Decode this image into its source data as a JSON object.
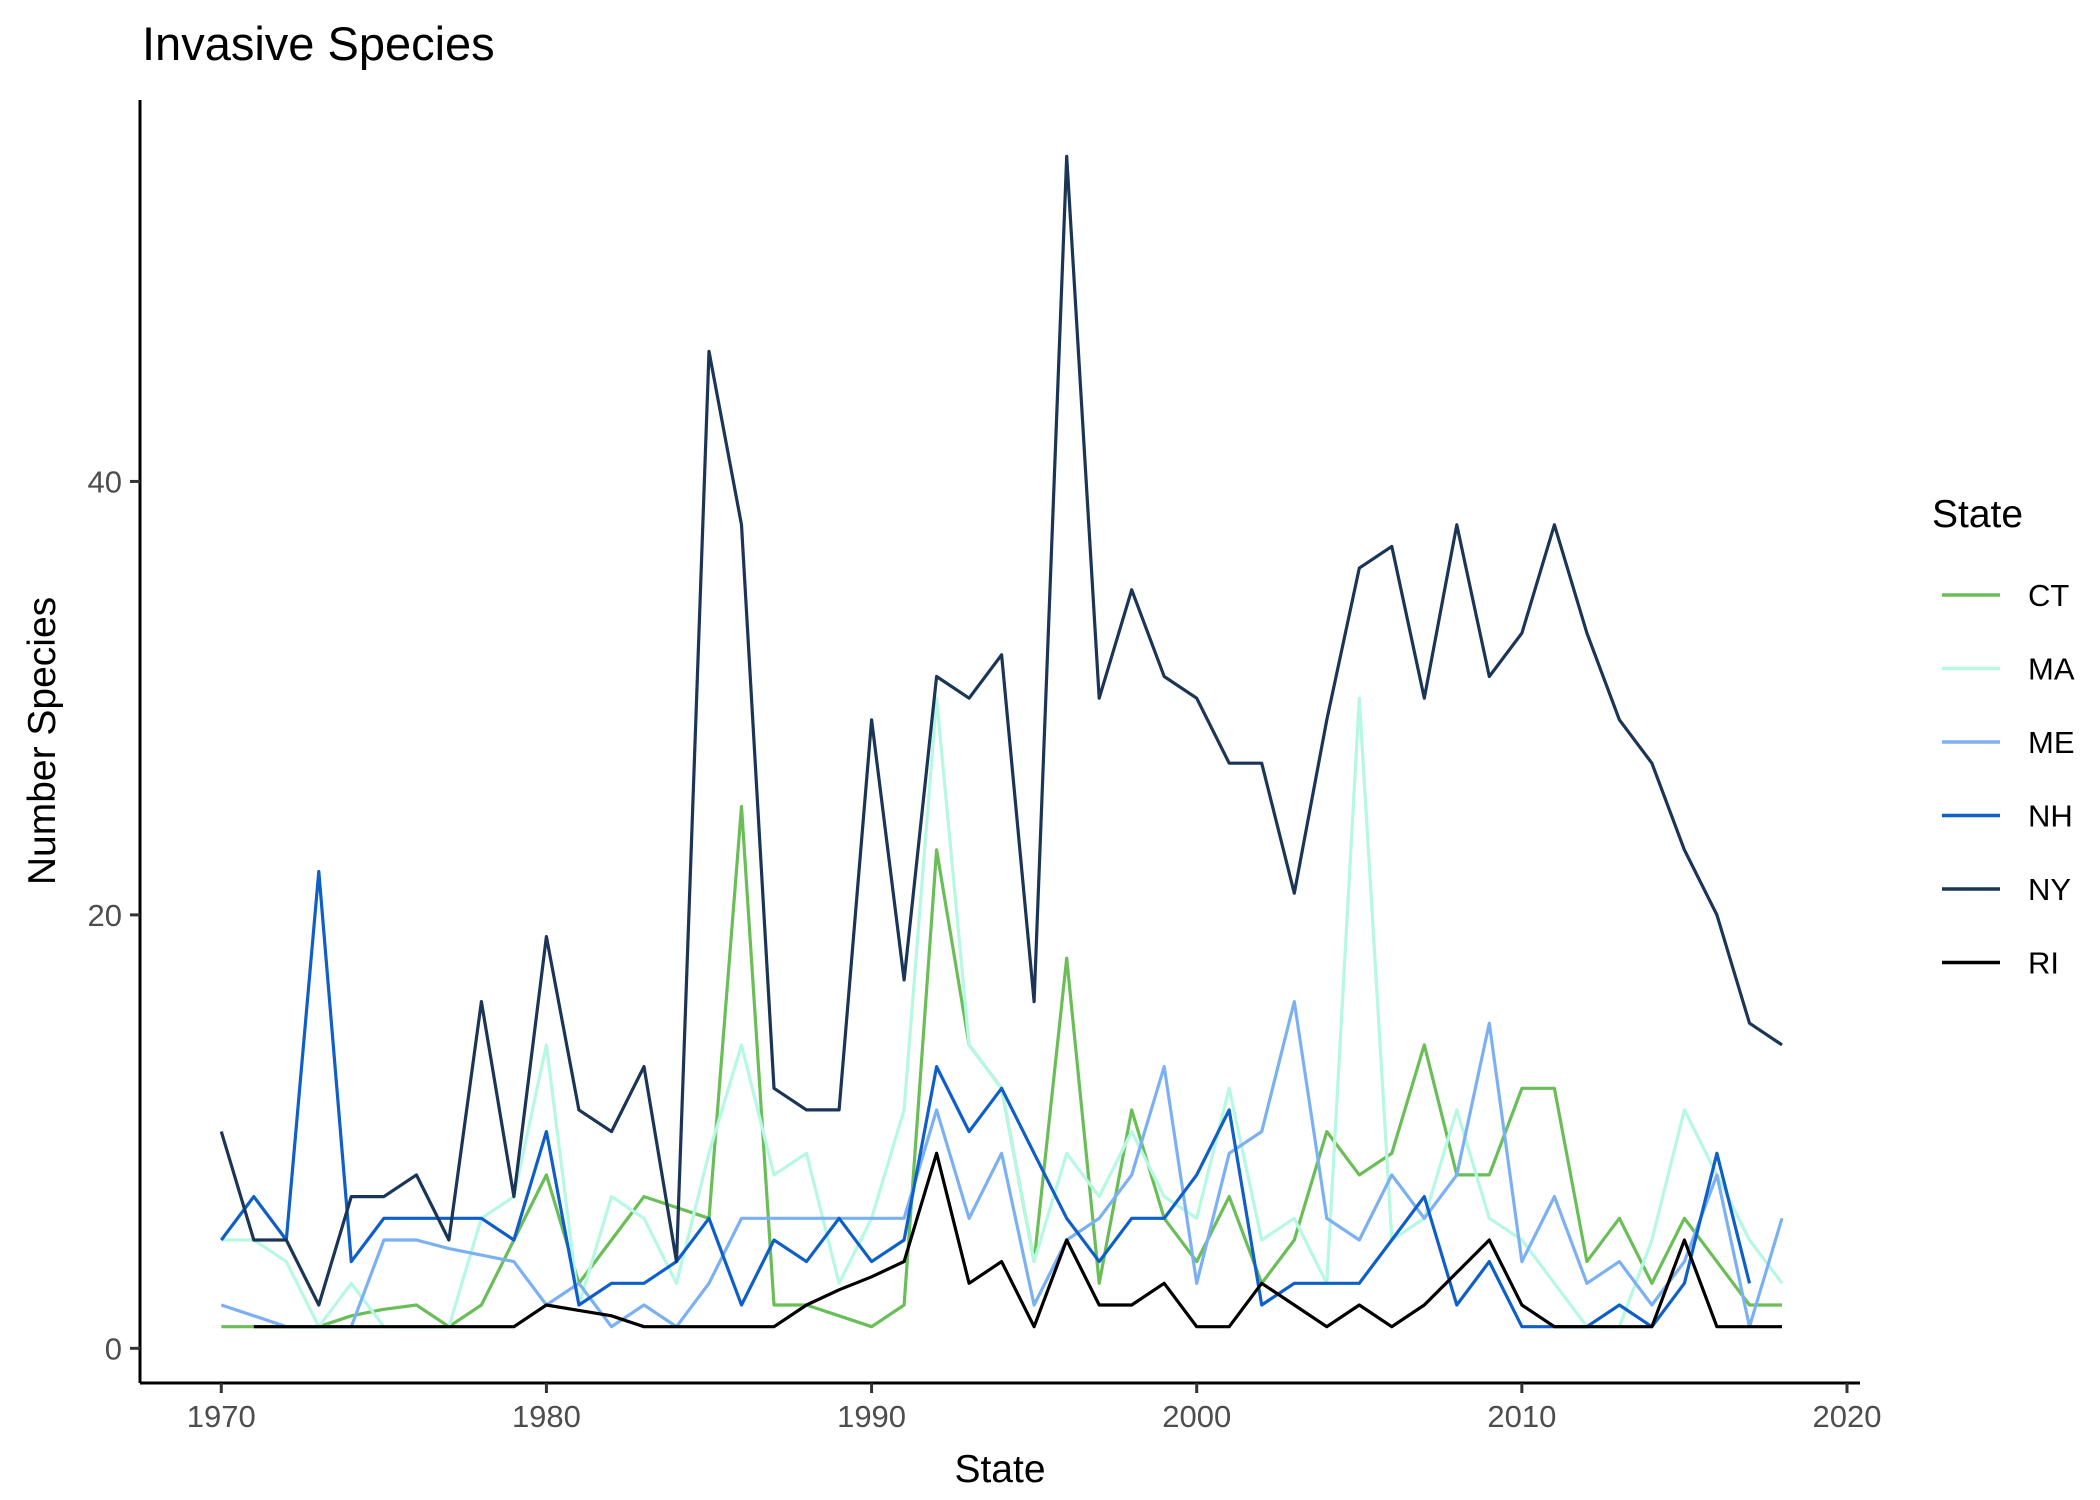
{
  "chart_data": {
    "type": "line",
    "title": "Invasive Species",
    "xlabel": "State",
    "ylabel": "Number Species",
    "xlim": [
      1967.5,
      2020.4
    ],
    "ylim": [
      -1.6,
      57.6
    ],
    "x_ticks": [
      1970,
      1980,
      1990,
      2000,
      2010,
      2020
    ],
    "y_ticks": [
      0,
      20,
      40
    ],
    "grid": false,
    "legend": {
      "title": "State",
      "position": "right"
    },
    "series": [
      {
        "name": "CT",
        "color": "#6abe57",
        "points": [
          [
            1970,
            1
          ],
          [
            1971,
            1
          ],
          [
            1972,
            1
          ],
          [
            1973,
            1
          ],
          [
            1974,
            1.5
          ],
          [
            1975,
            1.8
          ],
          [
            1976,
            2
          ],
          [
            1977,
            1
          ],
          [
            1978,
            2
          ],
          [
            1979,
            5
          ],
          [
            1980,
            8
          ],
          [
            1981,
            3
          ],
          [
            1982,
            5
          ],
          [
            1983,
            7
          ],
          [
            1984,
            6.5
          ],
          [
            1985,
            6
          ],
          [
            1986,
            25
          ],
          [
            1987,
            2
          ],
          [
            1988,
            2
          ],
          [
            1989,
            1.5
          ],
          [
            1990,
            1
          ],
          [
            1991,
            2
          ],
          [
            1992,
            23
          ],
          [
            1993,
            14
          ],
          [
            1994,
            12
          ],
          [
            1995,
            4
          ],
          [
            1996,
            18
          ],
          [
            1997,
            3
          ],
          [
            1998,
            11
          ],
          [
            1999,
            6
          ],
          [
            2000,
            4
          ],
          [
            2001,
            7
          ],
          [
            2002,
            3
          ],
          [
            2003,
            5
          ],
          [
            2004,
            10
          ],
          [
            2005,
            8
          ],
          [
            2006,
            9
          ],
          [
            2007,
            14
          ],
          [
            2008,
            8
          ],
          [
            2009,
            8
          ],
          [
            2010,
            12
          ],
          [
            2011,
            12
          ],
          [
            2012,
            4
          ],
          [
            2013,
            6
          ],
          [
            2014,
            3
          ],
          [
            2015,
            6
          ],
          [
            2016,
            4
          ],
          [
            2017,
            2
          ],
          [
            2018,
            2
          ]
        ]
      },
      {
        "name": "MA",
        "color": "#b6f8e2",
        "points": [
          [
            1970,
            5
          ],
          [
            1971,
            5
          ],
          [
            1972,
            4
          ],
          [
            1973,
            1
          ],
          [
            1974,
            3
          ],
          [
            1975,
            1
          ],
          [
            1976,
            1
          ],
          [
            1977,
            1
          ],
          [
            1978,
            6
          ],
          [
            1979,
            7
          ],
          [
            1980,
            14
          ],
          [
            1981,
            2
          ],
          [
            1982,
            7
          ],
          [
            1983,
            6
          ],
          [
            1984,
            3
          ],
          [
            1985,
            9
          ],
          [
            1986,
            14
          ],
          [
            1987,
            8
          ],
          [
            1988,
            9
          ],
          [
            1989,
            3
          ],
          [
            1990,
            6
          ],
          [
            1991,
            11
          ],
          [
            1992,
            30
          ],
          [
            1993,
            14
          ],
          [
            1994,
            12
          ],
          [
            1995,
            4
          ],
          [
            1996,
            9
          ],
          [
            1997,
            7
          ],
          [
            1998,
            10
          ],
          [
            1999,
            7
          ],
          [
            2000,
            6
          ],
          [
            2001,
            12
          ],
          [
            2002,
            5
          ],
          [
            2003,
            6
          ],
          [
            2004,
            3
          ],
          [
            2005,
            30
          ],
          [
            2006,
            5
          ],
          [
            2007,
            6
          ],
          [
            2008,
            11
          ],
          [
            2009,
            6
          ],
          [
            2010,
            5
          ],
          [
            2011,
            3
          ],
          [
            2012,
            1
          ],
          [
            2013,
            1
          ],
          [
            2014,
            5
          ],
          [
            2015,
            11
          ],
          [
            2016,
            8
          ],
          [
            2017,
            5
          ],
          [
            2018,
            3
          ]
        ]
      },
      {
        "name": "ME",
        "color": "#7bb1f3",
        "points": [
          [
            1970,
            2
          ],
          [
            1971,
            1.5
          ],
          [
            1972,
            1
          ],
          [
            1973,
            1
          ],
          [
            1974,
            1
          ],
          [
            1975,
            5
          ],
          [
            1976,
            5
          ],
          [
            1977,
            4.6
          ],
          [
            1978,
            4.3
          ],
          [
            1979,
            4
          ],
          [
            1980,
            2
          ],
          [
            1981,
            3
          ],
          [
            1982,
            1
          ],
          [
            1983,
            2
          ],
          [
            1984,
            1
          ],
          [
            1985,
            3
          ],
          [
            1986,
            6
          ],
          [
            1987,
            6
          ],
          [
            1988,
            6
          ],
          [
            1989,
            6
          ],
          [
            1990,
            6
          ],
          [
            1991,
            6
          ],
          [
            1992,
            11
          ],
          [
            1993,
            6
          ],
          [
            1994,
            9
          ],
          [
            1995,
            2
          ],
          [
            1996,
            5
          ],
          [
            1997,
            6
          ],
          [
            1998,
            8
          ],
          [
            1999,
            13
          ],
          [
            2000,
            3
          ],
          [
            2001,
            9
          ],
          [
            2002,
            10
          ],
          [
            2003,
            16
          ],
          [
            2004,
            6
          ],
          [
            2005,
            5
          ],
          [
            2006,
            8
          ],
          [
            2007,
            6
          ],
          [
            2008,
            8
          ],
          [
            2009,
            15
          ],
          [
            2010,
            4
          ],
          [
            2011,
            7
          ],
          [
            2012,
            3
          ],
          [
            2013,
            4
          ],
          [
            2014,
            2
          ],
          [
            2015,
            4
          ],
          [
            2016,
            8
          ],
          [
            2017,
            1
          ],
          [
            2018,
            6
          ]
        ]
      },
      {
        "name": "NH",
        "color": "#0f5fc9",
        "points": [
          [
            1970,
            5
          ],
          [
            1971,
            7
          ],
          [
            1972,
            5
          ],
          [
            1973,
            22
          ],
          [
            1974,
            4
          ],
          [
            1975,
            6
          ],
          [
            1976,
            6
          ],
          [
            1977,
            6
          ],
          [
            1978,
            6
          ],
          [
            1979,
            5
          ],
          [
            1980,
            10
          ],
          [
            1981,
            2
          ],
          [
            1982,
            3
          ],
          [
            1983,
            3
          ],
          [
            1984,
            4
          ],
          [
            1985,
            6
          ],
          [
            1986,
            2
          ],
          [
            1987,
            5
          ],
          [
            1988,
            4
          ],
          [
            1989,
            6
          ],
          [
            1990,
            4
          ],
          [
            1991,
            5
          ],
          [
            1992,
            13
          ],
          [
            1993,
            10
          ],
          [
            1994,
            12
          ],
          [
            1995,
            9
          ],
          [
            1996,
            6
          ],
          [
            1997,
            4
          ],
          [
            1998,
            6
          ],
          [
            1999,
            6
          ],
          [
            2000,
            8
          ],
          [
            2001,
            11
          ],
          [
            2002,
            2
          ],
          [
            2003,
            3
          ],
          [
            2004,
            3
          ],
          [
            2005,
            3
          ],
          [
            2006,
            5
          ],
          [
            2007,
            7
          ],
          [
            2008,
            2
          ],
          [
            2009,
            4
          ],
          [
            2010,
            1
          ],
          [
            2011,
            1
          ],
          [
            2012,
            1
          ],
          [
            2013,
            2
          ],
          [
            2014,
            1
          ],
          [
            2015,
            3
          ],
          [
            2016,
            9
          ],
          [
            2017,
            3
          ]
        ]
      },
      {
        "name": "NY",
        "color": "#1b3557",
        "points": [
          [
            1970,
            10
          ],
          [
            1971,
            5
          ],
          [
            1972,
            5
          ],
          [
            1973,
            2
          ],
          [
            1974,
            7
          ],
          [
            1975,
            7
          ],
          [
            1976,
            8
          ],
          [
            1977,
            5
          ],
          [
            1978,
            16
          ],
          [
            1979,
            7
          ],
          [
            1980,
            19
          ],
          [
            1981,
            11
          ],
          [
            1982,
            10
          ],
          [
            1983,
            13
          ],
          [
            1984,
            4
          ],
          [
            1985,
            46
          ],
          [
            1986,
            38
          ],
          [
            1987,
            12
          ],
          [
            1988,
            11
          ],
          [
            1989,
            11
          ],
          [
            1990,
            29
          ],
          [
            1991,
            17
          ],
          [
            1992,
            31
          ],
          [
            1993,
            30
          ],
          [
            1994,
            32
          ],
          [
            1995,
            16
          ],
          [
            1996,
            55
          ],
          [
            1997,
            30
          ],
          [
            1998,
            35
          ],
          [
            1999,
            31
          ],
          [
            2000,
            30
          ],
          [
            2001,
            27
          ],
          [
            2002,
            27
          ],
          [
            2003,
            21
          ],
          [
            2004,
            29
          ],
          [
            2005,
            36
          ],
          [
            2006,
            37
          ],
          [
            2007,
            30
          ],
          [
            2008,
            38
          ],
          [
            2009,
            31
          ],
          [
            2010,
            33
          ],
          [
            2011,
            38
          ],
          [
            2012,
            33
          ],
          [
            2013,
            29
          ],
          [
            2014,
            27
          ],
          [
            2015,
            23
          ],
          [
            2016,
            20
          ],
          [
            2017,
            15
          ],
          [
            2018,
            14
          ]
        ]
      },
      {
        "name": "RI",
        "color": "#000000",
        "points": [
          [
            1971,
            1
          ],
          [
            1972,
            1
          ],
          [
            1973,
            1
          ],
          [
            1974,
            1
          ],
          [
            1975,
            1
          ],
          [
            1976,
            1
          ],
          [
            1977,
            1
          ],
          [
            1978,
            1
          ],
          [
            1979,
            1
          ],
          [
            1980,
            2
          ],
          [
            1981,
            1.75
          ],
          [
            1982,
            1.5
          ],
          [
            1983,
            1
          ],
          [
            1984,
            1
          ],
          [
            1985,
            1
          ],
          [
            1986,
            1
          ],
          [
            1987,
            1
          ],
          [
            1988,
            2
          ],
          [
            1989,
            2.7
          ],
          [
            1990,
            3.3
          ],
          [
            1991,
            4
          ],
          [
            1992,
            9
          ],
          [
            1993,
            3
          ],
          [
            1994,
            4
          ],
          [
            1995,
            1
          ],
          [
            1996,
            5
          ],
          [
            1997,
            2
          ],
          [
            1998,
            2
          ],
          [
            1999,
            3
          ],
          [
            2000,
            1
          ],
          [
            2001,
            1
          ],
          [
            2002,
            3
          ],
          [
            2003,
            2
          ],
          [
            2004,
            1
          ],
          [
            2005,
            2
          ],
          [
            2006,
            1
          ],
          [
            2007,
            2
          ],
          [
            2008,
            3.5
          ],
          [
            2009,
            5
          ],
          [
            2010,
            2
          ],
          [
            2011,
            1
          ],
          [
            2012,
            1
          ],
          [
            2013,
            1
          ],
          [
            2014,
            1
          ],
          [
            2015,
            5
          ],
          [
            2016,
            1
          ],
          [
            2017,
            1
          ],
          [
            2018,
            1
          ]
        ]
      }
    ]
  }
}
